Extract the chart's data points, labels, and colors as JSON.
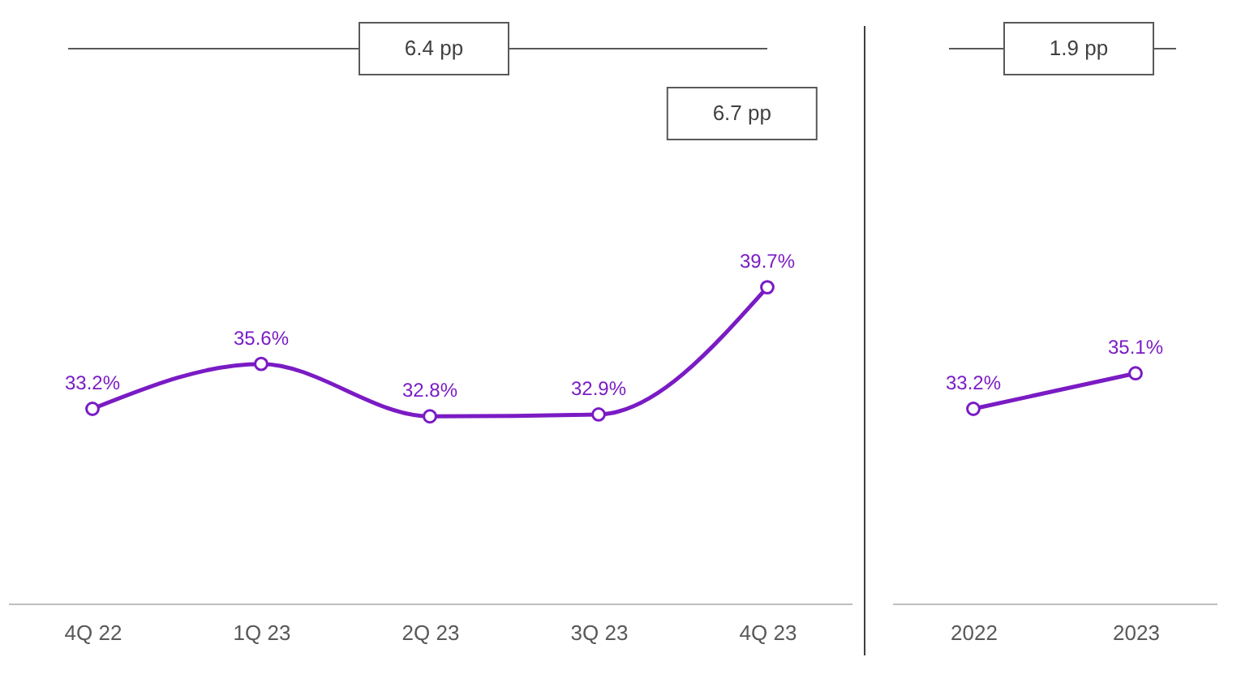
{
  "chart_data": [
    {
      "type": "line",
      "categories": [
        "4Q 22",
        "1Q 23",
        "2Q 23",
        "3Q 23",
        "4Q 23"
      ],
      "series": [
        {
          "color": "#7a1bc4",
          "values": [
            33.2,
            35.6,
            32.8,
            32.9,
            39.7
          ],
          "value_labels": [
            "33.2%",
            "35.6%",
            "32.8%",
            "32.9%",
            "39.7%"
          ]
        }
      ],
      "marker": "circle",
      "annotations": [
        "6.4 pp",
        "6.7 pp"
      ]
    },
    {
      "type": "line",
      "categories": [
        "2022",
        "2023"
      ],
      "series": [
        {
          "color": "#7a1bc4",
          "values": [
            33.2,
            35.1
          ],
          "value_labels": [
            "33.2%",
            "35.1%"
          ]
        }
      ],
      "marker": "circle",
      "annotations": [
        "1.9 pp"
      ]
    }
  ]
}
